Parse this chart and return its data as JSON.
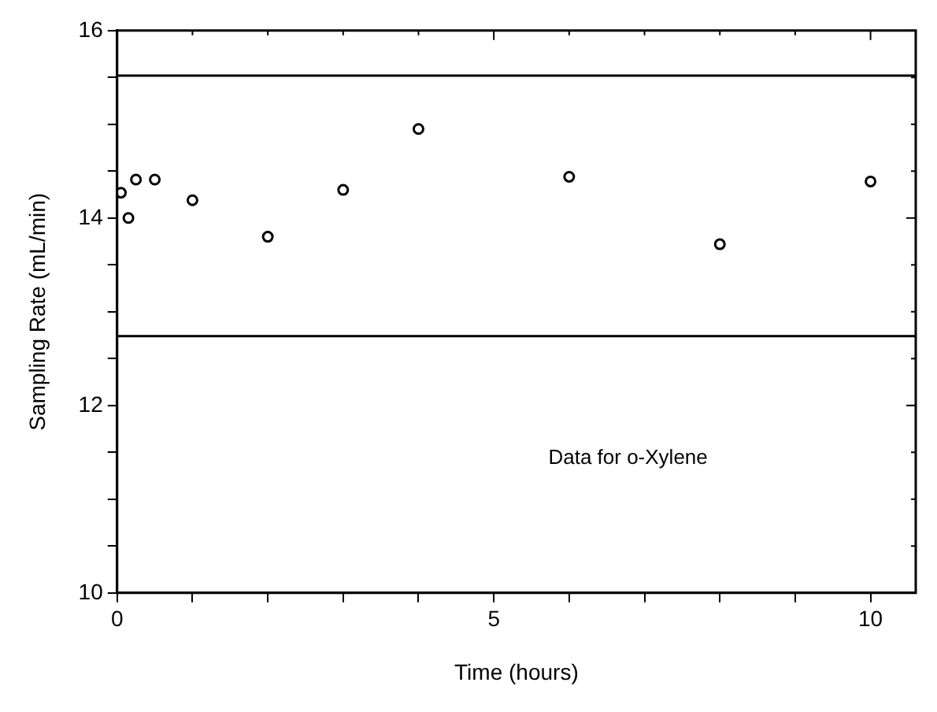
{
  "chart_data": {
    "type": "scatter",
    "xlabel": "Time (hours)",
    "ylabel": "Sampling Rate (mL/min)",
    "x": [
      0.05,
      0.15,
      0.25,
      0.5,
      1,
      2,
      3,
      4,
      6,
      8,
      10
    ],
    "series": [
      {
        "color": "#000000",
        "values": [
          14.27,
          14.0,
          14.41,
          14.41,
          14.19,
          13.8,
          14.3,
          14.95,
          14.44,
          13.72,
          14.39
        ]
      }
    ],
    "xlim": [
      0,
      10.6
    ],
    "xticks": [
      0,
      {
        "value": 1,
        "label": null
      },
      {
        "value": 2,
        "label": null
      },
      {
        "value": 3,
        "label": null
      },
      {
        "value": 4,
        "label": null
      },
      5,
      {
        "value": 6,
        "label": null
      },
      {
        "value": 7,
        "label": null
      },
      {
        "value": 8,
        "label": null
      },
      {
        "value": 9,
        "label": null
      },
      10
    ],
    "ylim": [
      10,
      16
    ],
    "yticks": [
      10,
      {
        "value": 10.5,
        "label": null
      },
      {
        "value": 11,
        "label": null
      },
      {
        "value": 11.5,
        "label": null
      },
      12,
      {
        "value": 12.5,
        "label": null
      },
      {
        "value": 13,
        "label": null
      },
      {
        "value": 13.5,
        "label": null
      },
      14,
      {
        "value": 14.5,
        "label": null
      },
      {
        "value": 15,
        "label": null
      },
      {
        "value": 15.5,
        "label": null
      },
      16
    ],
    "ref_lines": [
      {
        "axis": "y",
        "value": 15.52,
        "color": "#000000"
      },
      {
        "axis": "y",
        "value": 12.74,
        "color": "#000000"
      }
    ],
    "annotations": [
      "Data for o-Xylene"
    ],
    "marker": "circle",
    "grid": false,
    "legend": false
  }
}
